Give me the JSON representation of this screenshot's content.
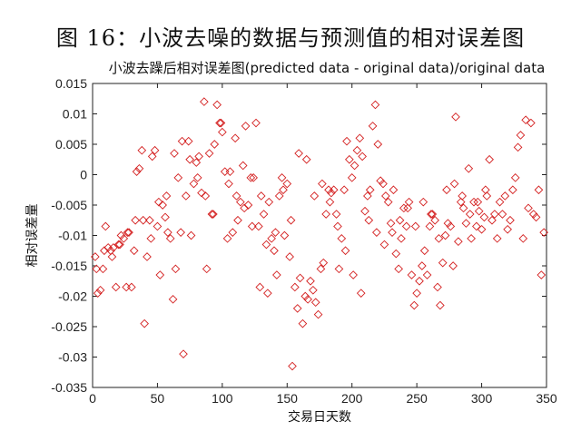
{
  "figure_caption": "图 16：小波去噪的数据与预测值的相对误差图",
  "colors": {
    "marker": "#d42020",
    "axis": "#222222"
  },
  "chart_data": {
    "type": "scatter",
    "title": "小波去躁后相对误差图(predicted data - original data)/original data",
    "xlabel": "交易日天数",
    "ylabel": "相对误差量",
    "xlim": [
      0,
      350
    ],
    "ylim": [
      -0.035,
      0.015
    ],
    "xticks": [
      0,
      50,
      100,
      150,
      200,
      250,
      300,
      350
    ],
    "yticks": [
      -0.035,
      -0.03,
      -0.025,
      -0.02,
      -0.015,
      -0.01,
      -0.005,
      0,
      0.005,
      0.01,
      0.015
    ],
    "xtick_labels": [
      "0",
      "50",
      "100",
      "150",
      "200",
      "250",
      "300",
      "350"
    ],
    "ytick_labels": [
      "-0.035",
      "-0.03",
      "-0.025",
      "-0.02",
      "-0.015",
      "-0.01",
      "-0.005",
      "0",
      "0.005",
      "0.01",
      "0.015"
    ],
    "grid": false,
    "marker": "diamond",
    "series": [
      {
        "points": [
          [
            2,
            -0.0135
          ],
          [
            4,
            -0.0195
          ],
          [
            6,
            -0.019
          ],
          [
            8,
            -0.0155
          ],
          [
            10,
            -0.0085
          ],
          [
            12,
            -0.012
          ],
          [
            14,
            -0.0125
          ],
          [
            16,
            -0.012
          ],
          [
            18,
            -0.0185
          ],
          [
            20,
            -0.0115
          ],
          [
            22,
            -0.01
          ],
          [
            24,
            -0.0105
          ],
          [
            26,
            -0.0185
          ],
          [
            28,
            -0.0095
          ],
          [
            30,
            -0.0185
          ],
          [
            32,
            -0.0125
          ],
          [
            34,
            0.0005
          ],
          [
            36,
            0.001
          ],
          [
            38,
            0.004
          ],
          [
            40,
            -0.0245
          ],
          [
            42,
            -0.0135
          ],
          [
            44,
            -0.0075
          ],
          [
            46,
            0.003
          ],
          [
            48,
            0.004
          ],
          [
            50,
            -0.0085
          ],
          [
            52,
            -0.0165
          ],
          [
            54,
            -0.005
          ],
          [
            56,
            -0.007
          ],
          [
            58,
            -0.0095
          ],
          [
            60,
            -0.0105
          ],
          [
            62,
            -0.0205
          ],
          [
            64,
            -0.0155
          ],
          [
            66,
            -0.0005
          ],
          [
            68,
            -0.0095
          ],
          [
            70,
            -0.0295
          ],
          [
            72,
            -0.0035
          ],
          [
            74,
            0.0055
          ],
          [
            76,
            -0.01
          ],
          [
            78,
            -0.0015
          ],
          [
            80,
            0.002
          ],
          [
            82,
            0.003
          ],
          [
            84,
            -0.003
          ],
          [
            86,
            0.012
          ],
          [
            88,
            -0.0155
          ],
          [
            90,
            0.0035
          ],
          [
            92,
            -0.0065
          ],
          [
            94,
            0.005
          ],
          [
            96,
            0.0115
          ],
          [
            98,
            0.0085
          ],
          [
            100,
            0.007
          ],
          [
            102,
            0.0005
          ],
          [
            104,
            -0.0105
          ],
          [
            106,
            0.0005
          ],
          [
            108,
            -0.0095
          ],
          [
            110,
            0.006
          ],
          [
            112,
            -0.0075
          ],
          [
            114,
            -0.0045
          ],
          [
            116,
            0.0015
          ],
          [
            118,
            0.008
          ],
          [
            120,
            -0.005
          ],
          [
            122,
            -0.0005
          ],
          [
            124,
            -0.0005
          ],
          [
            126,
            0.0085
          ],
          [
            128,
            -0.0085
          ],
          [
            130,
            -0.0035
          ],
          [
            132,
            -0.0065
          ],
          [
            134,
            -0.0115
          ],
          [
            136,
            -0.0045
          ],
          [
            138,
            -0.0105
          ],
          [
            140,
            -0.0125
          ],
          [
            142,
            -0.0165
          ],
          [
            144,
            -0.0035
          ],
          [
            146,
            -0.0005
          ],
          [
            148,
            -0.01
          ],
          [
            150,
            -0.0015
          ],
          [
            152,
            -0.0135
          ],
          [
            154,
            -0.0315
          ],
          [
            156,
            -0.0185
          ],
          [
            158,
            -0.022
          ],
          [
            160,
            -0.017
          ],
          [
            162,
            -0.0245
          ],
          [
            164,
            -0.02
          ],
          [
            166,
            -0.0205
          ],
          [
            168,
            -0.0175
          ],
          [
            170,
            -0.019
          ],
          [
            172,
            -0.021
          ],
          [
            174,
            -0.023
          ],
          [
            176,
            -0.0155
          ],
          [
            178,
            -0.0145
          ],
          [
            180,
            -0.0065
          ],
          [
            182,
            -0.0025
          ],
          [
            184,
            -0.003
          ],
          [
            186,
            -0.0025
          ],
          [
            188,
            -0.0065
          ],
          [
            190,
            -0.0155
          ],
          [
            192,
            -0.0105
          ],
          [
            194,
            -0.0025
          ],
          [
            196,
            0.0055
          ],
          [
            198,
            0.0025
          ],
          [
            200,
            -0.0005
          ],
          [
            202,
            0.0015
          ],
          [
            204,
            0.004
          ],
          [
            206,
            0.006
          ],
          [
            208,
            0.003
          ],
          [
            210,
            -0.006
          ],
          [
            212,
            -0.0035
          ],
          [
            214,
            -0.0025
          ],
          [
            216,
            0.008
          ],
          [
            218,
            0.0115
          ],
          [
            220,
            0.005
          ],
          [
            222,
            -0.001
          ],
          [
            224,
            -0.0015
          ],
          [
            226,
            -0.0035
          ],
          [
            228,
            -0.0045
          ],
          [
            230,
            -0.008
          ],
          [
            232,
            -0.0025
          ],
          [
            234,
            -0.013
          ],
          [
            236,
            -0.0155
          ],
          [
            238,
            -0.0105
          ],
          [
            240,
            -0.0055
          ],
          [
            242,
            -0.0085
          ],
          [
            244,
            -0.0045
          ],
          [
            246,
            -0.0165
          ],
          [
            248,
            -0.0215
          ],
          [
            250,
            -0.0195
          ],
          [
            252,
            -0.0175
          ],
          [
            254,
            -0.015
          ],
          [
            256,
            -0.0125
          ],
          [
            258,
            -0.0165
          ],
          [
            260,
            -0.0085
          ],
          [
            262,
            -0.0065
          ],
          [
            264,
            -0.0075
          ],
          [
            266,
            -0.0185
          ],
          [
            268,
            -0.0215
          ],
          [
            270,
            -0.0145
          ],
          [
            272,
            -0.01
          ],
          [
            274,
            -0.008
          ],
          [
            276,
            -0.0085
          ],
          [
            278,
            -0.015
          ],
          [
            280,
            0.0095
          ],
          [
            282,
            -0.011
          ],
          [
            284,
            -0.0045
          ],
          [
            286,
            -0.0055
          ],
          [
            288,
            -0.008
          ],
          [
            290,
            0.001
          ],
          [
            292,
            -0.0105
          ],
          [
            294,
            -0.0045
          ],
          [
            296,
            -0.0085
          ],
          [
            298,
            -0.006
          ],
          [
            300,
            -0.009
          ],
          [
            302,
            -0.007
          ],
          [
            304,
            -0.0035
          ],
          [
            306,
            0.0025
          ],
          [
            308,
            -0.0075
          ],
          [
            310,
            -0.0065
          ],
          [
            312,
            -0.0105
          ],
          [
            314,
            -0.0045
          ],
          [
            316,
            -0.0065
          ],
          [
            318,
            -0.0035
          ],
          [
            320,
            -0.009
          ],
          [
            322,
            -0.0075
          ],
          [
            324,
            -0.0025
          ],
          [
            326,
            -0.0005
          ],
          [
            328,
            0.0045
          ],
          [
            330,
            0.0065
          ],
          [
            332,
            -0.0105
          ],
          [
            334,
            0.009
          ],
          [
            336,
            -0.0055
          ],
          [
            338,
            0.0085
          ],
          [
            340,
            -0.0065
          ],
          [
            342,
            -0.007
          ],
          [
            344,
            -0.0025
          ],
          [
            346,
            -0.0165
          ],
          [
            348,
            -0.0095
          ],
          [
            3,
            -0.0155
          ],
          [
            9,
            -0.0125
          ],
          [
            15,
            -0.0135
          ],
          [
            21,
            -0.0115
          ],
          [
            27,
            -0.0095
          ],
          [
            33,
            -0.0075
          ],
          [
            39,
            -0.0075
          ],
          [
            45,
            -0.0105
          ],
          [
            51,
            -0.0045
          ],
          [
            57,
            -0.0035
          ],
          [
            63,
            0.0035
          ],
          [
            69,
            0.0055
          ],
          [
            75,
            0.0025
          ],
          [
            81,
            -0.0005
          ],
          [
            87,
            -0.0035
          ],
          [
            93,
            -0.0065
          ],
          [
            99,
            0.0085
          ],
          [
            105,
            -0.0015
          ],
          [
            111,
            -0.0035
          ],
          [
            117,
            -0.0055
          ],
          [
            123,
            -0.0085
          ],
          [
            129,
            -0.0185
          ],
          [
            135,
            -0.0195
          ],
          [
            141,
            -0.0095
          ],
          [
            147,
            -0.0025
          ],
          [
            153,
            -0.0075
          ],
          [
            159,
            0.0035
          ],
          [
            165,
            0.0025
          ],
          [
            171,
            -0.0035
          ],
          [
            177,
            -0.0015
          ],
          [
            183,
            -0.0045
          ],
          [
            189,
            -0.0085
          ],
          [
            195,
            -0.0125
          ],
          [
            201,
            -0.0165
          ],
          [
            207,
            -0.0195
          ],
          [
            213,
            -0.0075
          ],
          [
            219,
            -0.0095
          ],
          [
            225,
            -0.0115
          ],
          [
            231,
            -0.0095
          ],
          [
            237,
            -0.0075
          ],
          [
            243,
            -0.0055
          ],
          [
            249,
            -0.0085
          ],
          [
            255,
            -0.0045
          ],
          [
            261,
            -0.0065
          ],
          [
            267,
            -0.0105
          ],
          [
            273,
            -0.0025
          ],
          [
            279,
            -0.0015
          ],
          [
            285,
            -0.0035
          ],
          [
            291,
            -0.0065
          ],
          [
            297,
            -0.0045
          ],
          [
            303,
            -0.0025
          ]
        ]
      }
    ]
  }
}
